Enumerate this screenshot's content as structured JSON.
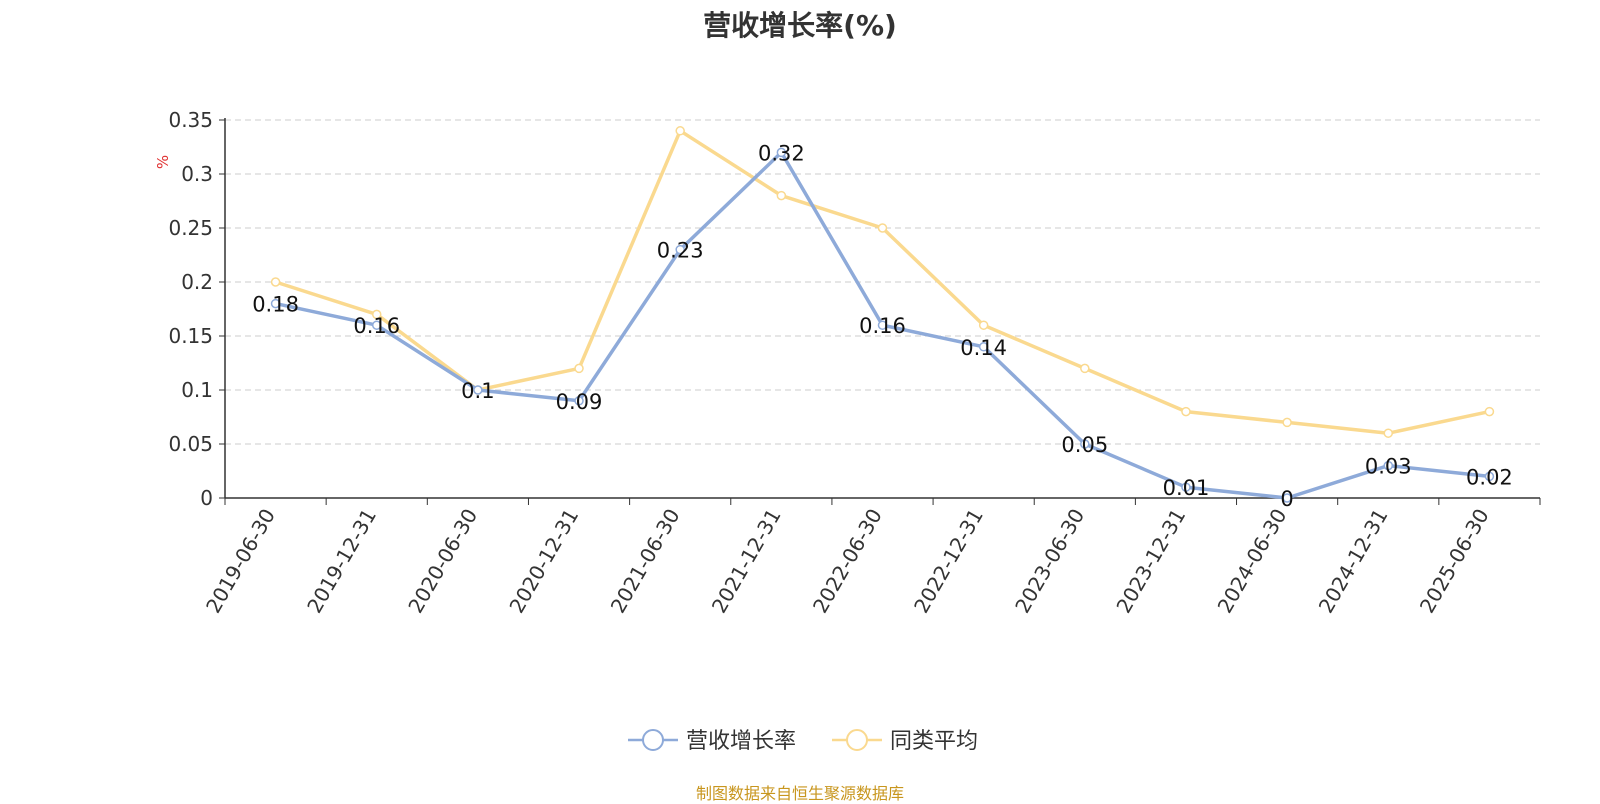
{
  "chart_data": {
    "type": "line",
    "title": "营收增长率(%)",
    "ylabel": "%",
    "xlabel": "",
    "ylim": [
      0,
      0.35
    ],
    "yticks": [
      "0",
      "0.05",
      "0.1",
      "0.15",
      "0.2",
      "0.25",
      "0.3",
      "0.35"
    ],
    "grid": "horizontal dashed",
    "legend_position": "bottom",
    "categories": [
      "2019-06-30",
      "2019-12-31",
      "2020-06-30",
      "2020-12-31",
      "2021-06-30",
      "2021-12-31",
      "2022-06-30",
      "2022-12-31",
      "2023-06-30",
      "2023-12-31",
      "2024-06-30",
      "2024-12-31",
      "2025-06-30"
    ],
    "series": [
      {
        "name": "营收增长率",
        "color": "#8eaad9",
        "values": [
          0.18,
          0.16,
          0.1,
          0.09,
          0.23,
          0.32,
          0.16,
          0.14,
          0.05,
          0.01,
          0,
          0.03,
          0.02
        ],
        "labels": [
          "0.18",
          "0.16",
          "0.1",
          "0.09",
          "0.23",
          "0.32",
          "0.16",
          "0.14",
          "0.05",
          "0.01",
          "0",
          "0.03",
          "0.02"
        ]
      },
      {
        "name": "同类平均",
        "color": "#fad98f",
        "values": [
          0.2,
          0.17,
          0.1,
          0.12,
          0.34,
          0.28,
          0.25,
          0.16,
          0.12,
          0.08,
          0.07,
          0.06,
          0.08
        ]
      }
    ]
  },
  "source_note": "制图数据来自恒生聚源数据库"
}
